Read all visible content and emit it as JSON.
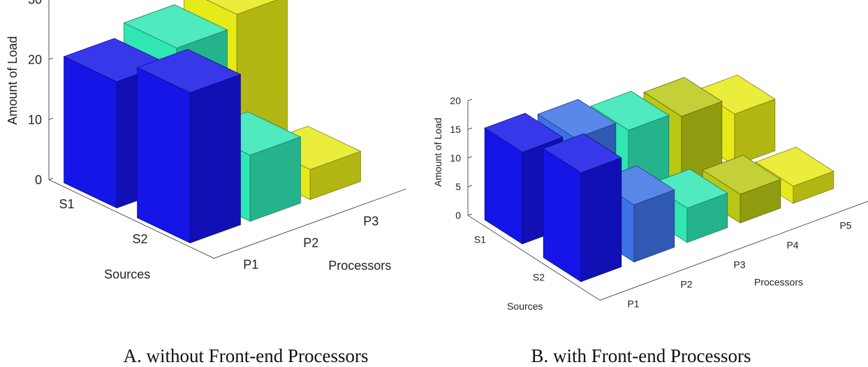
{
  "chart_data": [
    {
      "type": "bar3d",
      "panel_caption": "A. without Front-end Processors",
      "zlabel": "Amount of Load",
      "xlabel": "Processors",
      "ylabel": "Sources",
      "z_ticks": [
        "0",
        "10",
        "20",
        "30"
      ],
      "zlim": [
        0,
        30
      ],
      "processors": [
        "P1",
        "P2",
        "P3"
      ],
      "sources": [
        "S1",
        "S2"
      ],
      "bars": [
        {
          "source": "S1",
          "processor": "P1",
          "value": 21,
          "color": "#1515e8"
        },
        {
          "source": "S1",
          "processor": "P2",
          "value": 23,
          "color": "#30e6b2"
        },
        {
          "source": "S1",
          "processor": "P3",
          "value": 25,
          "color": "#e6ea18"
        },
        {
          "source": "S2",
          "processor": "P1",
          "value": 25,
          "color": "#1515e8"
        },
        {
          "source": "S2",
          "processor": "P2",
          "value": 11,
          "color": "#30e6b2"
        },
        {
          "source": "S2",
          "processor": "P3",
          "value": 5,
          "color": "#e6ea18"
        }
      ]
    },
    {
      "type": "bar3d",
      "panel_caption": "B. with Front-end Processors",
      "zlabel": "Amount of Load",
      "xlabel": "Processors",
      "ylabel": "Sources",
      "z_ticks": [
        "0",
        "5",
        "10",
        "15",
        "20"
      ],
      "zlim": [
        0,
        20
      ],
      "processors": [
        "P1",
        "P2",
        "P3",
        "P4",
        "P5"
      ],
      "sources": [
        "S1",
        "S2"
      ],
      "bars": [
        {
          "source": "S1",
          "processor": "P1",
          "value": 16,
          "color": "#1515e8"
        },
        {
          "source": "S1",
          "processor": "P2",
          "value": 15,
          "color": "#3d72e6"
        },
        {
          "source": "S1",
          "processor": "P3",
          "value": 13,
          "color": "#30e6b2"
        },
        {
          "source": "S1",
          "processor": "P4",
          "value": 12,
          "color": "#b8c814"
        },
        {
          "source": "S1",
          "processor": "P5",
          "value": 9,
          "color": "#e6ea18"
        },
        {
          "source": "S2",
          "processor": "P1",
          "value": 19,
          "color": "#1515e8"
        },
        {
          "source": "S2",
          "processor": "P2",
          "value": 10,
          "color": "#3d72e6"
        },
        {
          "source": "S2",
          "processor": "P3",
          "value": 6,
          "color": "#30e6b2"
        },
        {
          "source": "S2",
          "processor": "P4",
          "value": 5,
          "color": "#b8c814"
        },
        {
          "source": "S2",
          "processor": "P5",
          "value": 3,
          "color": "#e6ea18"
        }
      ]
    }
  ]
}
